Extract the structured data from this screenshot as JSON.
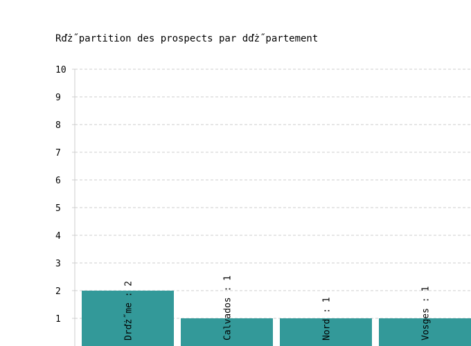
{
  "chart_data": {
    "type": "bar",
    "title": "Rďż˝partition des prospects par dďż˝partement",
    "xlabel": "",
    "ylabel": "",
    "categories": [
      "Drďż˝me",
      "Calvados",
      "Nord",
      "Vosges"
    ],
    "values": [
      2,
      1,
      1,
      1
    ],
    "data_labels": [
      "Drďż˝me : 2",
      "Calvados : 1",
      "Nord : 1",
      "Vosges : 1"
    ],
    "ylim": [
      0,
      10
    ],
    "yticks": [
      1,
      2,
      3,
      4,
      5,
      6,
      7,
      8,
      9,
      10
    ],
    "grid": true,
    "legend": "none",
    "colors": {
      "bar": "#339999",
      "grid": "#cccccc",
      "axis": "#cccccc"
    }
  }
}
